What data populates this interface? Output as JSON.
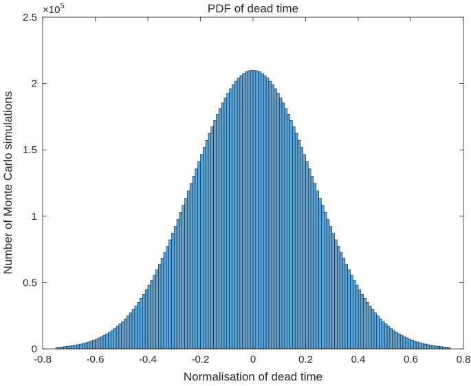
{
  "chart_data": {
    "type": "histogram",
    "title": "PDF of dead time",
    "x_label": "Normalisation of dead time",
    "y_label": "Number of Monte Carlo simulations",
    "y_multiplier": {
      "base": "×10",
      "exponent": "5"
    },
    "color": "#5aa3d6",
    "edge_color": "#1a1a1a",
    "grid": false,
    "bins": [
      -0.75,
      -0.74,
      -0.73,
      -0.72,
      -0.71,
      -0.7,
      -0.69,
      -0.68,
      -0.67,
      -0.66,
      -0.65,
      -0.64,
      -0.63,
      -0.62,
      -0.61,
      -0.6,
      -0.59,
      -0.58,
      -0.57,
      -0.56,
      -0.55,
      -0.54,
      -0.53,
      -0.52,
      -0.51,
      -0.5,
      -0.49,
      -0.48,
      -0.47,
      -0.46,
      -0.45,
      -0.44,
      -0.43,
      -0.42,
      -0.41,
      -0.4,
      -0.39,
      -0.38,
      -0.37,
      -0.36,
      -0.35,
      -0.34,
      -0.33,
      -0.32,
      -0.31,
      -0.3,
      -0.29,
      -0.28,
      -0.27,
      -0.26,
      -0.25,
      -0.24,
      -0.23,
      -0.22,
      -0.21,
      -0.2,
      -0.19,
      -0.18,
      -0.17,
      -0.16,
      -0.15,
      -0.14,
      -0.13,
      -0.12,
      -0.11,
      -0.1,
      -0.09,
      -0.08,
      -0.07,
      -0.06,
      -0.05,
      -0.04,
      -0.03,
      -0.02,
      -0.01,
      0,
      0.01,
      0.02,
      0.03,
      0.04,
      0.05,
      0.06,
      0.07,
      0.08,
      0.09,
      0.1,
      0.11,
      0.12,
      0.13,
      0.14,
      0.15,
      0.16,
      0.17,
      0.18,
      0.19,
      0.2,
      0.21,
      0.22,
      0.23,
      0.24,
      0.25,
      0.26,
      0.27,
      0.28,
      0.29,
      0.3,
      0.31,
      0.32,
      0.33,
      0.34,
      0.35,
      0.36,
      0.37,
      0.38,
      0.39,
      0.4,
      0.41,
      0.42,
      0.43,
      0.44,
      0.45,
      0.46,
      0.47,
      0.48,
      0.49,
      0.5,
      0.51,
      0.52,
      0.53,
      0.54,
      0.55,
      0.56,
      0.57,
      0.58,
      0.59,
      0.6,
      0.61,
      0.62,
      0.63,
      0.64,
      0.65,
      0.66,
      0.67,
      0.68,
      0.69,
      0.7,
      0.71,
      0.72,
      0.73,
      0.74,
      0.75
    ],
    "counts": [
      1100,
      1300,
      1500,
      1700,
      1900,
      2200,
      2500,
      2800,
      3200,
      3600,
      4100,
      4600,
      5200,
      5900,
      6600,
      7400,
      8300,
      9200,
      10300,
      11400,
      12700,
      14000,
      15500,
      17100,
      18900,
      20700,
      22700,
      24900,
      27200,
      29700,
      32300,
      35100,
      38100,
      41200,
      44600,
      48100,
      51700,
      55600,
      59600,
      63800,
      68200,
      72700,
      77400,
      82200,
      87200,
      92300,
      97500,
      102800,
      108100,
      113600,
      119100,
      124600,
      130200,
      135700,
      141200,
      146600,
      152000,
      157200,
      162400,
      167400,
      172200,
      176800,
      181200,
      185300,
      189200,
      192800,
      196100,
      199100,
      201800,
      204100,
      206000,
      207600,
      208800,
      209600,
      209900,
      209900,
      209600,
      208800,
      207600,
      206000,
      204100,
      201800,
      199100,
      196100,
      192800,
      189200,
      185300,
      181200,
      176800,
      172200,
      167400,
      162400,
      157200,
      152000,
      146600,
      141200,
      135700,
      130200,
      124600,
      119100,
      113600,
      108100,
      102800,
      97500,
      92300,
      87200,
      82200,
      77400,
      72700,
      68200,
      63800,
      59600,
      55600,
      51700,
      48100,
      44600,
      41200,
      38100,
      35100,
      32300,
      29700,
      27200,
      24900,
      22700,
      20700,
      18900,
      17100,
      15500,
      14000,
      12700,
      11400,
      10300,
      9200,
      8300,
      7400,
      6600,
      5900,
      5200,
      4600,
      4100,
      3600,
      3200,
      2800,
      2500,
      2200,
      1900,
      1700,
      1500,
      1300,
      1100
    ],
    "xlim": [
      -0.8,
      0.8
    ],
    "xticks": [
      -0.8,
      -0.6,
      -0.4,
      -0.2,
      0,
      0.2,
      0.4,
      0.6,
      0.8
    ],
    "ylim": [
      0,
      250000
    ],
    "yticks": [
      0,
      {
        "value": 50000,
        "label": "0.5"
      },
      {
        "value": 100000,
        "label": "1"
      },
      {
        "value": 150000,
        "label": "1.5"
      },
      {
        "value": 200000,
        "label": "2"
      },
      {
        "value": 250000,
        "label": "2.5"
      }
    ]
  }
}
